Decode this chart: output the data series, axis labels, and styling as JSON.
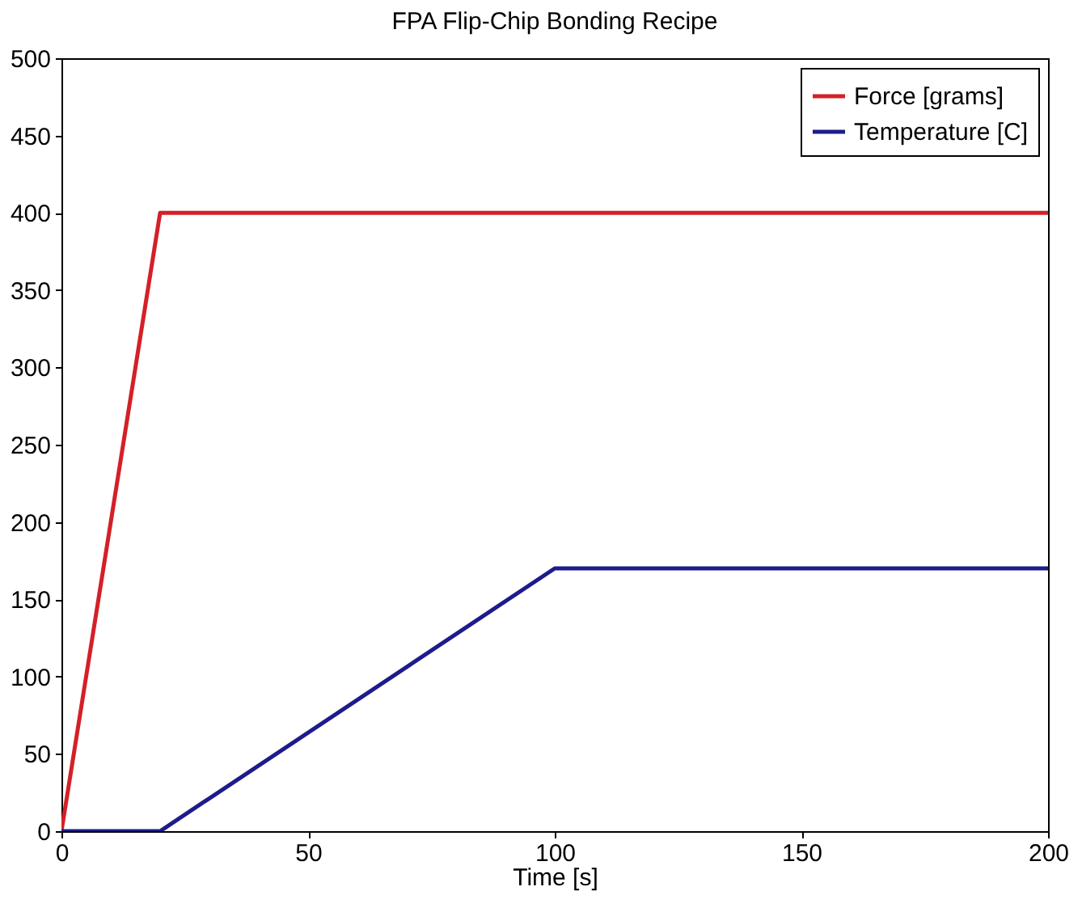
{
  "chart_data": {
    "type": "line",
    "title": "FPA Flip-Chip Bonding Recipe",
    "xlabel": "Time [s]",
    "xlim": [
      0,
      200
    ],
    "xticks": [
      0,
      50,
      100,
      150,
      200
    ],
    "ylim": [
      0,
      500
    ],
    "yticks": [
      0,
      50,
      100,
      150,
      200,
      250,
      300,
      350,
      400,
      450,
      500
    ],
    "legend": "top right",
    "grid": false,
    "series": [
      {
        "name": "Force [grams]",
        "color": "#d42027",
        "x": [
          0,
          20,
          200
        ],
        "values": [
          0,
          400,
          400
        ]
      },
      {
        "name": "Temperature [C]",
        "color": "#1c1c8a",
        "x": [
          0,
          20,
          100,
          200
        ],
        "values": [
          0,
          0,
          170,
          170
        ]
      }
    ]
  }
}
